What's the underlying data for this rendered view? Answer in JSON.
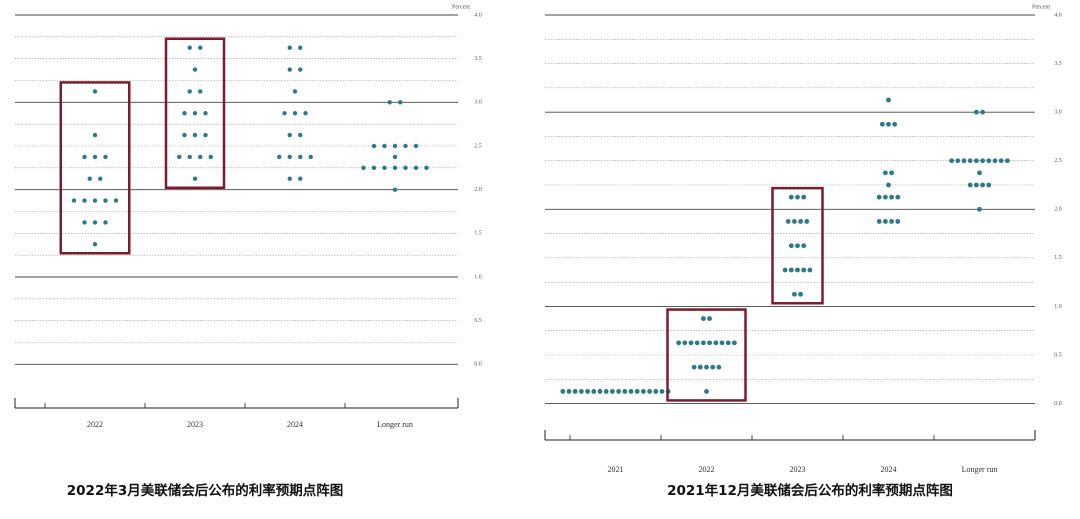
{
  "chart_data": [
    {
      "type": "dot",
      "title": "2022年3月美联储会后公布的利率预期点阵图",
      "ylabel": "Percent",
      "categories": [
        "2022",
        "2023",
        "2024",
        "Longer run"
      ],
      "values": [
        [
          3.125,
          2.625,
          2.375,
          2.375,
          2.375,
          2.125,
          2.125,
          1.875,
          1.875,
          1.875,
          1.875,
          1.875,
          1.625,
          1.625,
          1.625,
          1.375
        ],
        [
          3.625,
          3.625,
          3.375,
          3.125,
          3.125,
          2.875,
          2.875,
          2.875,
          2.625,
          2.625,
          2.625,
          2.375,
          2.375,
          2.375,
          2.375,
          2.125
        ],
        [
          3.625,
          3.625,
          3.375,
          3.375,
          3.125,
          2.875,
          2.875,
          2.875,
          2.625,
          2.625,
          2.375,
          2.375,
          2.375,
          2.375,
          2.125,
          2.125
        ],
        [
          3,
          3,
          2.5,
          2.5,
          2.5,
          2.5,
          2.5,
          2.375,
          2.25,
          2.25,
          2.25,
          2.25,
          2.25,
          2.25,
          2.25,
          2
        ]
      ],
      "highlighted": [
        true,
        true,
        false,
        false
      ],
      "color": "#2c7a86",
      "box_color": "#7b1c2c",
      "ylim": [
        -0.5,
        4
      ],
      "yticks": [
        {
          "value": 0,
          "label": "0.0"
        },
        {
          "value": 0.5,
          "label": "0.5"
        },
        {
          "value": 1,
          "label": "1.0"
        },
        {
          "value": 1.5,
          "label": "1.5"
        },
        {
          "value": 2,
          "label": "2.0"
        },
        {
          "value": 2.5,
          "label": "2.5"
        },
        {
          "value": 3,
          "label": "3.0"
        },
        {
          "value": 3.5,
          "label": "3.5"
        },
        {
          "value": 4,
          "label": "4.0"
        }
      ]
    },
    {
      "type": "dot",
      "title": "2021年12月美联储会后公布的利率预期点阵图",
      "ylabel": "Percent",
      "categories": [
        "2021",
        "2022",
        "2023",
        "2024",
        "Longer run"
      ],
      "values": [
        [
          0.125,
          0.125,
          0.125,
          0.125,
          0.125,
          0.125,
          0.125,
          0.125,
          0.125,
          0.125,
          0.125,
          0.125,
          0.125,
          0.125,
          0.125,
          0.125,
          0.125,
          0.125
        ],
        [
          0.875,
          0.875,
          0.625,
          0.625,
          0.625,
          0.625,
          0.625,
          0.625,
          0.625,
          0.625,
          0.625,
          0.625,
          0.375,
          0.375,
          0.375,
          0.375,
          0.375,
          0.125
        ],
        [
          2.125,
          2.125,
          2.125,
          1.875,
          1.875,
          1.875,
          1.875,
          1.625,
          1.625,
          1.625,
          1.375,
          1.375,
          1.375,
          1.375,
          1.375,
          1.125,
          1.125
        ],
        [
          3.125,
          2.875,
          2.875,
          2.875,
          2.375,
          2.375,
          2.25,
          2.125,
          2.125,
          2.125,
          2.125,
          1.875,
          1.875,
          1.875,
          1.875
        ],
        [
          3,
          3,
          2.5,
          2.5,
          2.5,
          2.5,
          2.5,
          2.5,
          2.5,
          2.5,
          2.5,
          2.5,
          2.375,
          2.25,
          2.25,
          2.25,
          2.25,
          2
        ]
      ],
      "highlighted": [
        false,
        true,
        true,
        false,
        false
      ],
      "color": "#2c7a86",
      "box_color": "#7b1c2c",
      "ylim": [
        -0.375,
        4
      ],
      "yticks": [
        {
          "value": 0,
          "label": "0.0"
        },
        {
          "value": 0.5,
          "label": "0.5"
        },
        {
          "value": 1,
          "label": "1.0"
        },
        {
          "value": 1.5,
          "label": "1.5"
        },
        {
          "value": 2,
          "label": "2.0"
        },
        {
          "value": 2.5,
          "label": "2.5"
        },
        {
          "value": 3,
          "label": "3.0"
        },
        {
          "value": 3.5,
          "label": "3.5"
        },
        {
          "value": 4,
          "label": "4.0"
        }
      ]
    }
  ]
}
